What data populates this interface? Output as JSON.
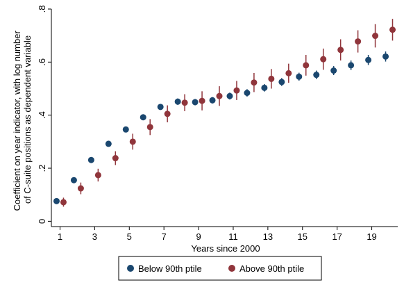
{
  "chart_data": {
    "type": "scatter",
    "xlabel": "Years since 2000",
    "ylabel_lines": [
      "Coefficient on year indicator, with log number",
      "of C-suite positions as dependent variable"
    ],
    "x_ticks": [
      1,
      3,
      5,
      7,
      9,
      11,
      13,
      15,
      17,
      19
    ],
    "x_tick_labels": [
      "1",
      "3",
      "5",
      "7",
      "9",
      "11",
      "13",
      "15",
      "17",
      "19"
    ],
    "y_ticks": [
      0,
      0.2,
      0.4,
      0.6,
      0.8
    ],
    "y_tick_labels": [
      "0",
      ".2",
      ".4",
      ".6",
      ".8"
    ],
    "xlim": [
      0.5,
      20.5
    ],
    "ylim": [
      -0.02,
      0.8
    ],
    "grid": false,
    "legend_position": "bottom",
    "series": [
      {
        "name": "Below 90th ptile",
        "color": "#1a476f",
        "x": [
          0.8,
          1.8,
          2.8,
          3.8,
          4.8,
          5.8,
          6.8,
          7.8,
          8.8,
          9.8,
          10.8,
          11.8,
          12.8,
          13.8,
          14.8,
          15.8,
          16.8,
          17.8,
          18.8,
          19.8
        ],
        "y": [
          0.076,
          0.155,
          0.231,
          0.292,
          0.346,
          0.392,
          0.431,
          0.451,
          0.449,
          0.456,
          0.472,
          0.484,
          0.503,
          0.525,
          0.545,
          0.552,
          0.568,
          0.588,
          0.608,
          0.621
        ],
        "ci_low": [
          0.072,
          0.149,
          0.225,
          0.285,
          0.339,
          0.384,
          0.421,
          0.439,
          0.437,
          0.444,
          0.459,
          0.47,
          0.489,
          0.51,
          0.53,
          0.536,
          0.551,
          0.57,
          0.589,
          0.602
        ],
        "ci_high": [
          0.08,
          0.161,
          0.237,
          0.299,
          0.353,
          0.4,
          0.441,
          0.463,
          0.461,
          0.468,
          0.485,
          0.498,
          0.517,
          0.54,
          0.56,
          0.568,
          0.585,
          0.606,
          0.627,
          0.64
        ]
      },
      {
        "name": "Above 90th ptile",
        "color": "#90353b",
        "x": [
          1.2,
          2.2,
          3.2,
          4.2,
          5.2,
          6.2,
          7.2,
          8.2,
          9.2,
          10.2,
          11.2,
          12.2,
          13.2,
          14.2,
          15.2,
          16.2,
          17.2,
          18.2,
          19.2,
          20.2
        ],
        "y": [
          0.072,
          0.124,
          0.174,
          0.238,
          0.3,
          0.355,
          0.405,
          0.447,
          0.454,
          0.472,
          0.493,
          0.523,
          0.537,
          0.558,
          0.588,
          0.611,
          0.646,
          0.678,
          0.699,
          0.722
        ],
        "ci_low": [
          0.055,
          0.102,
          0.15,
          0.212,
          0.27,
          0.325,
          0.373,
          0.415,
          0.418,
          0.435,
          0.457,
          0.487,
          0.5,
          0.522,
          0.549,
          0.571,
          0.606,
          0.636,
          0.655,
          0.681
        ],
        "ci_high": [
          0.089,
          0.146,
          0.198,
          0.264,
          0.33,
          0.385,
          0.437,
          0.479,
          0.49,
          0.509,
          0.529,
          0.559,
          0.574,
          0.594,
          0.627,
          0.651,
          0.686,
          0.72,
          0.743,
          0.763
        ]
      }
    ]
  }
}
